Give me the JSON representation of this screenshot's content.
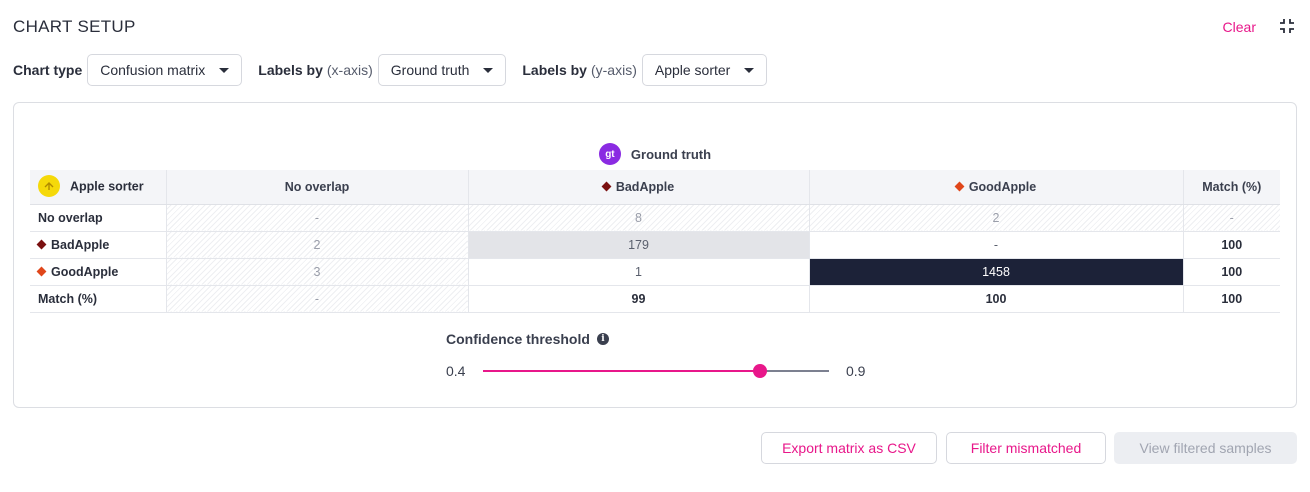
{
  "header": {
    "title": "CHART SETUP",
    "clear_label": "Clear"
  },
  "setup": {
    "chart_type": {
      "label": "Chart type",
      "value": "Confusion matrix"
    },
    "labels_x": {
      "label": "Labels by",
      "sub": "(x-axis)",
      "value": "Ground truth"
    },
    "labels_y": {
      "label": "Labels by",
      "sub": "(y-axis)",
      "value": "Apple sorter"
    }
  },
  "matrix": {
    "gt_badge": "gt",
    "gt_title": "Ground truth",
    "corner_label": "Apple sorter",
    "columns": [
      {
        "label": "No overlap",
        "color": ""
      },
      {
        "label": "BadApple",
        "color": "#7a1010"
      },
      {
        "label": "GoodApple",
        "color": "#e0461a"
      },
      {
        "label": "Match (%)",
        "color": ""
      }
    ],
    "rows": [
      {
        "label": "No overlap",
        "color": "",
        "cells": [
          "-",
          "8",
          "2",
          "-"
        ]
      },
      {
        "label": "BadApple",
        "color": "#7a1010",
        "cells": [
          "2",
          "179",
          "-",
          "100"
        ]
      },
      {
        "label": "GoodApple",
        "color": "#e0461a",
        "cells": [
          "3",
          "1",
          "1458",
          "100"
        ]
      },
      {
        "label": "Match (%)",
        "color": "",
        "cells": [
          "-",
          "99",
          "100",
          "100"
        ]
      }
    ]
  },
  "confidence": {
    "label": "Confidence threshold",
    "info_glyph": "i",
    "min": "0.4",
    "max": "0.9",
    "value_fraction": 0.8
  },
  "actions": {
    "export_label": "Export matrix as CSV",
    "filter_label": "Filter mismatched",
    "view_label": "View filtered samples"
  },
  "colors": {
    "accent": "#e8178a",
    "dark_cell": "#1c2238",
    "gt_badge": "#8a2be2",
    "sorter_icon": "#f5d90a"
  }
}
